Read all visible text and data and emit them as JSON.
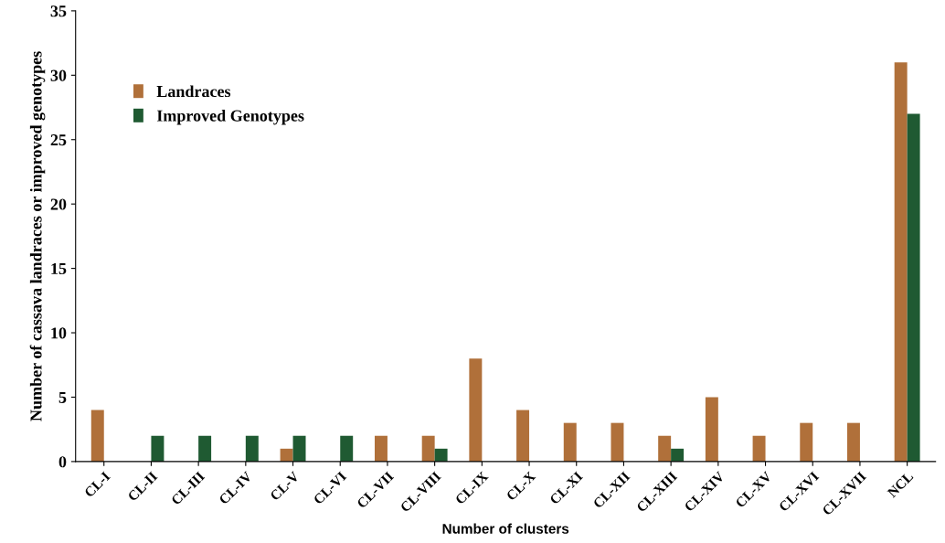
{
  "chart_data": {
    "type": "bar",
    "xlabel": "Number of clusters",
    "ylabel": "Number of cassava landraces or improved genotypes",
    "categories": [
      "CL-I",
      "CL-II",
      "CL-III",
      "CL-IV",
      "CL-V",
      "CL-VI",
      "CL-VII",
      "CL-VIII",
      "CL-IX",
      "CL-X",
      "CL-XI",
      "CL-XII",
      "CL-XIII",
      "CL-XIV",
      "CL-XV",
      "CL-XVI",
      "CL-XVII",
      "NCL"
    ],
    "series": [
      {
        "name": "Landraces",
        "color": "#b0703a",
        "values": [
          4,
          0,
          0,
          0,
          1,
          0,
          2,
          2,
          8,
          4,
          3,
          3,
          2,
          5,
          2,
          3,
          3,
          31
        ]
      },
      {
        "name": "Improved Genotypes",
        "color": "#1f5a32",
        "values": [
          0,
          2,
          2,
          2,
          2,
          2,
          0,
          1,
          0,
          0,
          0,
          0,
          1,
          0,
          0,
          0,
          0,
          27
        ]
      }
    ],
    "ylim": [
      0,
      35
    ],
    "yticks": [
      0,
      5,
      10,
      15,
      20,
      25,
      30,
      35
    ],
    "grid": false,
    "legend": "top left"
  }
}
